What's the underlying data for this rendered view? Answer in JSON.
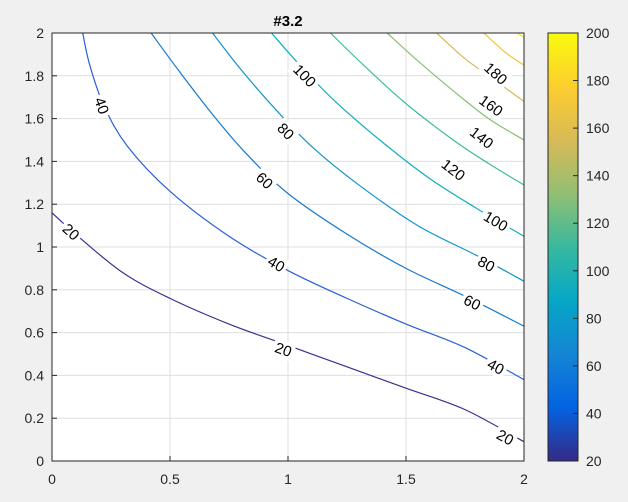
{
  "chart_data": {
    "type": "contour",
    "title": "#3.2",
    "xlabel": "",
    "ylabel": "",
    "xlim": [
      0,
      2
    ],
    "ylim": [
      0,
      2
    ],
    "x_ticks": [
      "0",
      "0.5",
      "1",
      "1.5",
      "2"
    ],
    "y_ticks": [
      "0",
      "0.2",
      "0.4",
      "0.6",
      "0.8",
      "1",
      "1.2",
      "1.4",
      "1.6",
      "1.8",
      "2"
    ],
    "grid": true,
    "colorbar": {
      "range": [
        20,
        200
      ],
      "ticks": [
        "20",
        "40",
        "60",
        "80",
        "100",
        "120",
        "140",
        "160",
        "180",
        "200"
      ],
      "colormap": [
        "#352a87",
        "#0363e1",
        "#1485d4",
        "#06a7c6",
        "#38b99e",
        "#92bf73",
        "#d9ba56",
        "#fcce2e",
        "#f9fb0e"
      ]
    },
    "levels": [
      {
        "level": 20,
        "color": "#3d2f8f",
        "points": [
          [
            0,
            1.16
          ],
          [
            0.1,
            1.06
          ],
          [
            0.3,
            0.88
          ],
          [
            0.5,
            0.76
          ],
          [
            0.75,
            0.64
          ],
          [
            1.0,
            0.54
          ],
          [
            1.25,
            0.44
          ],
          [
            1.5,
            0.34
          ],
          [
            1.75,
            0.24
          ],
          [
            2.0,
            0.09
          ]
        ],
        "labels": [
          {
            "text": "20",
            "x": 0.08,
            "y": 1.07
          },
          {
            "text": "20",
            "x": 0.98,
            "y": 0.52
          },
          {
            "text": "20",
            "x": 1.92,
            "y": 0.11
          }
        ]
      },
      {
        "level": 40,
        "color": "#2a5fd8",
        "points": [
          [
            0.13,
            2.0
          ],
          [
            0.16,
            1.85
          ],
          [
            0.22,
            1.66
          ],
          [
            0.32,
            1.47
          ],
          [
            0.5,
            1.26
          ],
          [
            0.75,
            1.05
          ],
          [
            1.0,
            0.89
          ],
          [
            1.25,
            0.76
          ],
          [
            1.5,
            0.64
          ],
          [
            1.75,
            0.53
          ],
          [
            2.0,
            0.38
          ]
        ],
        "labels": [
          {
            "text": "40",
            "x": 0.21,
            "y": 1.66
          },
          {
            "text": "40",
            "x": 0.95,
            "y": 0.92
          },
          {
            "text": "40",
            "x": 1.88,
            "y": 0.44
          }
        ]
      },
      {
        "level": 60,
        "color": "#1779cf",
        "points": [
          [
            0.42,
            2.0
          ],
          [
            0.54,
            1.82
          ],
          [
            0.68,
            1.62
          ],
          [
            0.82,
            1.44
          ],
          [
            1.0,
            1.25
          ],
          [
            1.25,
            1.06
          ],
          [
            1.5,
            0.9
          ],
          [
            1.75,
            0.77
          ],
          [
            2.0,
            0.63
          ]
        ],
        "labels": [
          {
            "text": "60",
            "x": 0.9,
            "y": 1.31
          },
          {
            "text": "60",
            "x": 1.78,
            "y": 0.74
          }
        ]
      },
      {
        "level": 80,
        "color": "#1096c8",
        "points": [
          [
            0.68,
            2.0
          ],
          [
            0.8,
            1.83
          ],
          [
            0.95,
            1.64
          ],
          [
            1.1,
            1.47
          ],
          [
            1.3,
            1.29
          ],
          [
            1.55,
            1.1
          ],
          [
            1.8,
            0.96
          ],
          [
            2.0,
            0.84
          ]
        ],
        "labels": [
          {
            "text": "80",
            "x": 0.99,
            "y": 1.54
          },
          {
            "text": "80",
            "x": 1.84,
            "y": 0.92
          }
        ]
      },
      {
        "level": 100,
        "color": "#10aec0",
        "points": [
          [
            0.93,
            2.0
          ],
          [
            1.05,
            1.85
          ],
          [
            1.2,
            1.68
          ],
          [
            1.4,
            1.49
          ],
          [
            1.6,
            1.32
          ],
          [
            1.8,
            1.18
          ],
          [
            2.0,
            1.05
          ]
        ],
        "labels": [
          {
            "text": "100",
            "x": 1.07,
            "y": 1.8
          },
          {
            "text": "100",
            "x": 1.88,
            "y": 1.12
          }
        ]
      },
      {
        "level": 120,
        "color": "#3cbc9e",
        "points": [
          [
            1.18,
            2.0
          ],
          [
            1.32,
            1.85
          ],
          [
            1.5,
            1.67
          ],
          [
            1.7,
            1.5
          ],
          [
            1.85,
            1.39
          ],
          [
            2.0,
            1.29
          ]
        ],
        "labels": [
          {
            "text": "120",
            "x": 1.7,
            "y": 1.36
          }
        ]
      },
      {
        "level": 140,
        "color": "#8cbf73",
        "points": [
          [
            1.42,
            2.0
          ],
          [
            1.55,
            1.87
          ],
          [
            1.7,
            1.73
          ],
          [
            1.85,
            1.6
          ],
          [
            2.0,
            1.5
          ]
        ],
        "labels": [
          {
            "text": "140",
            "x": 1.82,
            "y": 1.51
          }
        ]
      },
      {
        "level": 160,
        "color": "#d2ba5a",
        "points": [
          [
            1.63,
            2.0
          ],
          [
            1.75,
            1.88
          ],
          [
            1.9,
            1.76
          ],
          [
            2.0,
            1.68
          ]
        ],
        "labels": [
          {
            "text": "160",
            "x": 1.86,
            "y": 1.66
          }
        ]
      },
      {
        "level": 180,
        "color": "#f3c43a",
        "points": [
          [
            1.83,
            2.0
          ],
          [
            1.92,
            1.91
          ],
          [
            2.0,
            1.85
          ]
        ],
        "labels": [
          {
            "text": "180",
            "x": 1.88,
            "y": 1.81
          }
        ]
      },
      {
        "level": 200,
        "color": "#f6ec1a",
        "points": [
          [
            1.97,
            2.0
          ],
          [
            2.0,
            1.98
          ]
        ],
        "labels": []
      }
    ]
  }
}
